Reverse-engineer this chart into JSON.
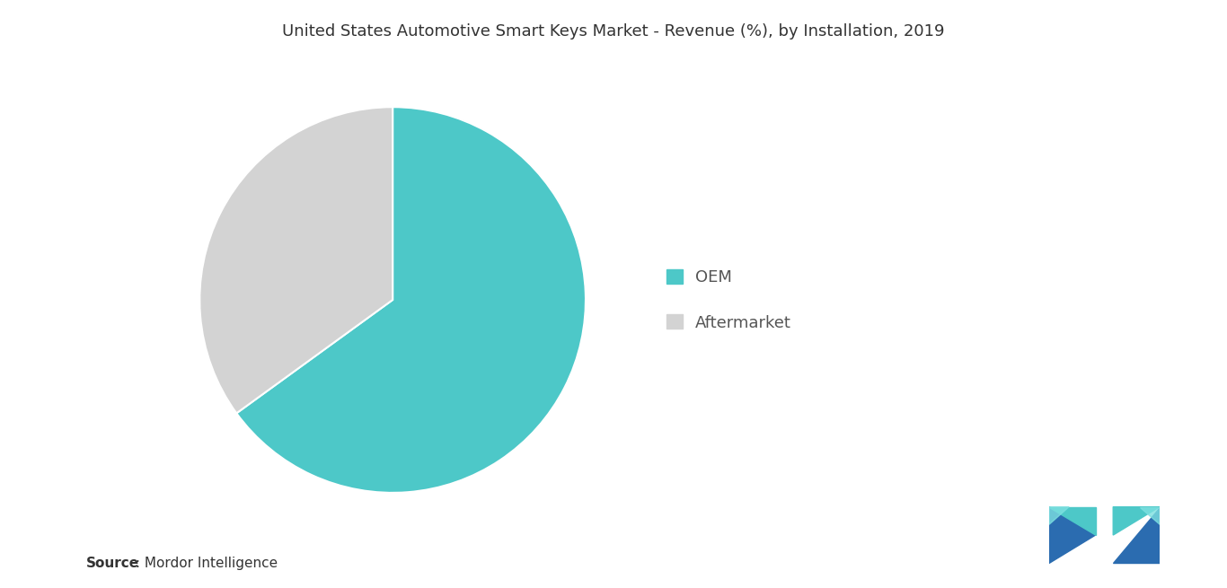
{
  "title": "United States Automotive Smart Keys Market - Revenue (%), by Installation, 2019",
  "slices": [
    65,
    35
  ],
  "labels": [
    "OEM",
    "Aftermarket"
  ],
  "colors": [
    "#4DC8C8",
    "#D3D3D3"
  ],
  "legend_labels": [
    "OEM",
    "Aftermarket"
  ],
  "source_bold": "Source",
  "source_rest": " : Mordor Intelligence",
  "background_color": "#ffffff",
  "title_fontsize": 13,
  "legend_fontsize": 13,
  "source_fontsize": 11,
  "startangle": 90
}
